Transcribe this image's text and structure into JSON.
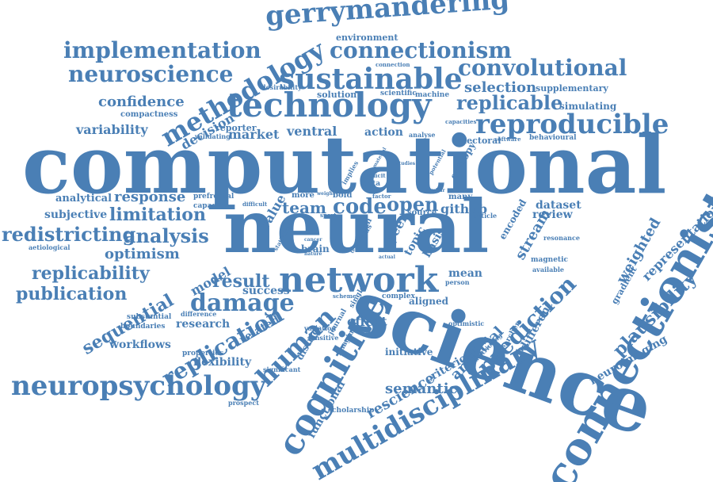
{
  "accent_color": "#4a7fb5",
  "background_color": "#ffffff",
  "words": {
    "computational": "computational",
    "neural": "neural",
    "science": "science",
    "connectionist": "connectionist",
    "cognitive": "cognitive",
    "network": "network",
    "technology": "technology",
    "neuropsychology": "neuropsychology",
    "multidisciplinary": "multidisciplinary",
    "gerrymandering": "gerrymandering",
    "sustainable": "sustainable",
    "reproducible": "reproducible",
    "implementation": "implementation",
    "neuroscience": "neuroscience",
    "methodology": "methodology",
    "connectionism": "connectionism",
    "convolutional": "convolutional",
    "replicable": "replicable",
    "selection": "selection",
    "supplementary": "supplementary",
    "simulating": "simulating",
    "confidence": "confidence",
    "compactness": "compactness",
    "variability": "variability",
    "decision": "decision",
    "reporter": "reporter",
    "market": "market",
    "ventral": "ventral",
    "action": "action",
    "electoral": "electoral",
    "behavioural": "behavioural",
    "prediction": "prediction",
    "human": "human",
    "damage": "damage",
    "replication": "replication",
    "publication": "publication",
    "replicability": "replicability",
    "analysis": "analysis",
    "redistricting": "redistricting",
    "limitation": "limitation",
    "response": "response",
    "analytical": "analytical",
    "subjective": "subjective",
    "optimism": "optimism",
    "sequential": "sequential",
    "workflows": "workflows",
    "flexibility": "flexibility",
    "plausibility": "plausibility",
    "representation": "representation",
    "weighted": "weighted",
    "neuroimaging": "neuroimaging",
    "semantic": "semantic",
    "rescience": "rescience",
    "artificial": "artificial",
    "criterion": "criterion",
    "functional": "functional",
    "team": "team",
    "code": "code",
    "open": "open",
    "github": "github",
    "dataset": "dataset",
    "review": "review",
    "result": "result",
    "success": "success",
    "research": "research",
    "related": "related",
    "district": "district",
    "effect": "effect",
    "initiative": "initiative",
    "model": "model",
    "brain": "brain",
    "stream": "stream",
    "peer": "peer",
    "topic": "topic",
    "basis": "basis",
    "mean": "mean",
    "person": "person",
    "aligned": "aligned",
    "complex": "complex",
    "solution": "solution",
    "desirability": "desirability",
    "scientific": "scientific",
    "machine": "machine",
    "environment": "environment",
    "connection": "connection",
    "capacities": "capacities",
    "software": "software",
    "analyse": "analyse",
    "validating": "validating",
    "entropy": "entropy",
    "value": "value",
    "more": "more",
    "bold": "bold",
    "data": "data",
    "factor": "factor",
    "many": "many",
    "source": "source",
    "article": "article",
    "encoded": "encoded",
    "resonance": "resonance",
    "magnetic": "magnetic",
    "available": "available",
    "gradient": "gradient",
    "prefrontal": "prefrontal",
    "capacity": "capacity",
    "difficult": "difficult",
    "statistical": "statistical",
    "cancer": "cancer",
    "nature": "nature",
    "substantial": "substantial",
    "boundaries": "boundaries",
    "difference": "difference",
    "properties": "properties",
    "prospect": "prospect",
    "significant": "significant",
    "scholarship": "scholarship",
    "districting": "districting",
    "researcher": "researcher",
    "different": "different",
    "optimistic": "optimistic",
    "journal": "journal",
    "imaging": "imaging",
    "variation": "variation",
    "sensitive": "sensitive",
    "scheme": "scheme",
    "single": "single",
    "actual": "actual",
    "deficit": "deficit",
    "implies": "implies",
    "material": "material",
    "studies": "studies",
    "potential": "potential",
    "similar": "similar",
    "weight": "weight",
    "sport": "sport",
    "testing": "testing",
    "actiological": "aetiological",
    "bias": "bias",
    "fun": "fun"
  }
}
